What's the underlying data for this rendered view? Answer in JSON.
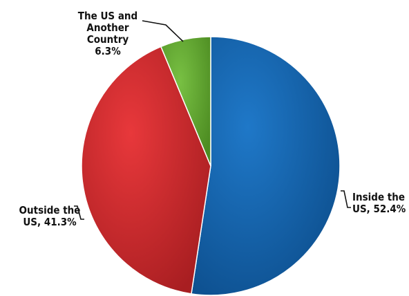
{
  "chart_data": {
    "type": "pie",
    "title": "",
    "slices": [
      {
        "label_lines": [
          "Inside the",
          "US, 52.4%"
        ],
        "value": 52.4,
        "color": "#1f78c8",
        "color_dark": "#0d4f8e"
      },
      {
        "label_lines": [
          "Outside the",
          "US, 41.3%"
        ],
        "value": 41.3,
        "color": "#e8383b",
        "color_dark": "#a81e21"
      },
      {
        "label_lines": [
          "The US and",
          "Another",
          "Country",
          "6.3%"
        ],
        "value": 6.3,
        "color": "#78c043",
        "color_dark": "#4d8c22"
      }
    ],
    "start_angle": "12 o'clock",
    "direction": "clockwise",
    "legend": "none"
  }
}
